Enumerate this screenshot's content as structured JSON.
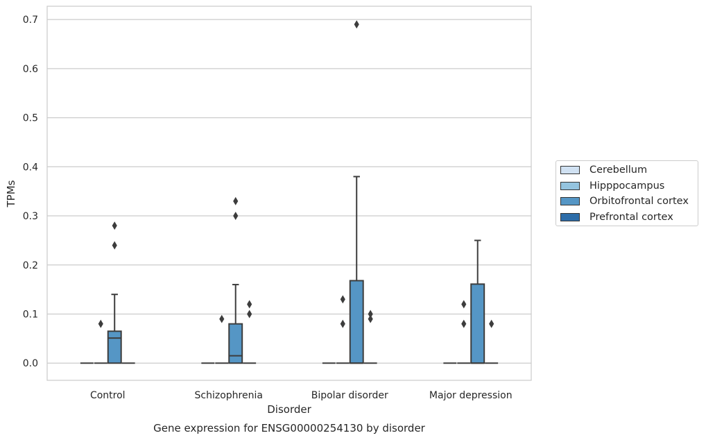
{
  "chart_data": {
    "type": "boxplot",
    "title": "Gene expression for ENSG00000254130 by disorder",
    "xlabel": "Disorder",
    "ylabel": "TPMs",
    "ylim": [
      -0.035,
      0.727
    ],
    "yticks": [
      "0.0",
      "0.1",
      "0.2",
      "0.3",
      "0.4",
      "0.5",
      "0.6",
      "0.7"
    ],
    "ytick_values": [
      0.0,
      0.1,
      0.2,
      0.3,
      0.4,
      0.5,
      0.6,
      0.7
    ],
    "grid": true,
    "legend_position": "right",
    "categories": [
      "Control",
      "Schizophrenia",
      "Bipolar disorder",
      "Major depression"
    ],
    "series": [
      {
        "name": "Cerebellum",
        "color": "#d0e1f2",
        "boxes": [
          {
            "q1": 0,
            "median": 0,
            "q3": 0,
            "whisker_low": 0,
            "whisker_high": 0,
            "outliers": []
          },
          {
            "q1": 0,
            "median": 0,
            "q3": 0,
            "whisker_low": 0,
            "whisker_high": 0,
            "outliers": []
          },
          {
            "q1": 0,
            "median": 0,
            "q3": 0,
            "whisker_low": 0,
            "whisker_high": 0,
            "outliers": []
          },
          {
            "q1": 0,
            "median": 0,
            "q3": 0,
            "whisker_low": 0,
            "whisker_high": 0,
            "outliers": []
          }
        ]
      },
      {
        "name": "Hipppocampus",
        "color": "#94c4df",
        "boxes": [
          {
            "q1": 0,
            "median": 0,
            "q3": 0,
            "whisker_low": 0,
            "whisker_high": 0,
            "outliers": [
              0.08
            ]
          },
          {
            "q1": 0,
            "median": 0,
            "q3": 0,
            "whisker_low": 0,
            "whisker_high": 0,
            "outliers": [
              0.09
            ]
          },
          {
            "q1": 0,
            "median": 0,
            "q3": 0,
            "whisker_low": 0,
            "whisker_high": 0,
            "outliers": [
              0.08,
              0.13
            ]
          },
          {
            "q1": 0,
            "median": 0,
            "q3": 0,
            "whisker_low": 0,
            "whisker_high": 0,
            "outliers": [
              0.08,
              0.12
            ]
          }
        ]
      },
      {
        "name": "Orbitofrontal cortex",
        "color": "#5596c5",
        "boxes": [
          {
            "q1": 0,
            "median": 0.051,
            "q3": 0.065,
            "whisker_low": 0,
            "whisker_high": 0.14,
            "outliers": [
              0.24,
              0.28
            ]
          },
          {
            "q1": 0,
            "median": 0.015,
            "q3": 0.08,
            "whisker_low": 0,
            "whisker_high": 0.16,
            "outliers": [
              0.3,
              0.33
            ]
          },
          {
            "q1": 0,
            "median": 0,
            "q3": 0.168,
            "whisker_low": 0,
            "whisker_high": 0.38,
            "outliers": [
              0.69
            ]
          },
          {
            "q1": 0,
            "median": 0,
            "q3": 0.161,
            "whisker_low": 0,
            "whisker_high": 0.25,
            "outliers": []
          }
        ]
      },
      {
        "name": "Prefrontal cortex",
        "color": "#2d6da9",
        "boxes": [
          {
            "q1": 0,
            "median": 0,
            "q3": 0,
            "whisker_low": 0,
            "whisker_high": 0,
            "outliers": []
          },
          {
            "q1": 0,
            "median": 0,
            "q3": 0,
            "whisker_low": 0,
            "whisker_high": 0,
            "outliers": [
              0.1,
              0.12
            ]
          },
          {
            "q1": 0,
            "median": 0,
            "q3": 0,
            "whisker_low": 0,
            "whisker_high": 0,
            "outliers": [
              0.09,
              0.1
            ]
          },
          {
            "q1": 0,
            "median": 0,
            "q3": 0,
            "whisker_low": 0,
            "whisker_high": 0,
            "outliers": [
              0.08
            ]
          }
        ]
      }
    ]
  }
}
